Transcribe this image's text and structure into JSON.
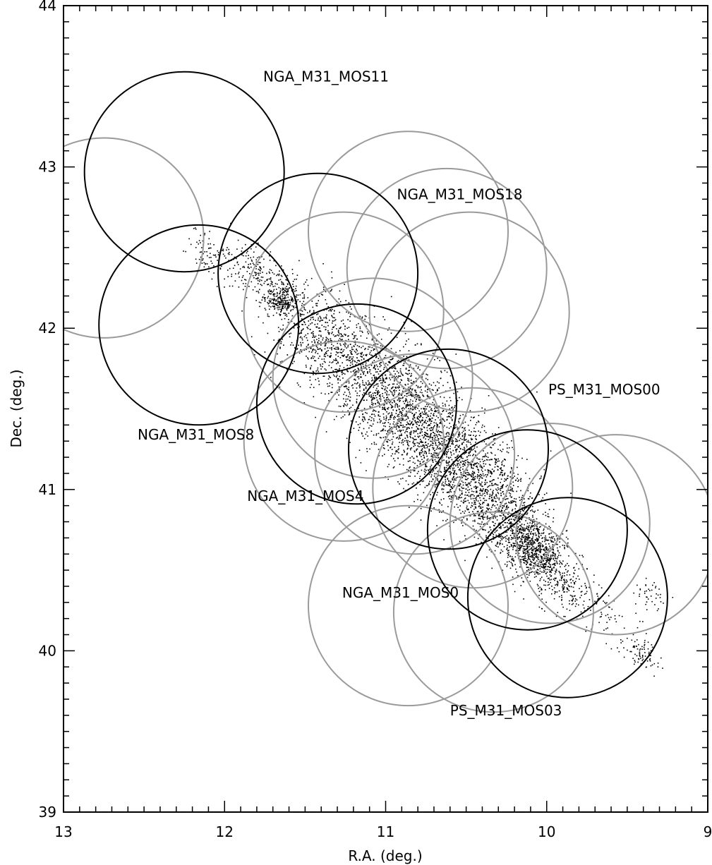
{
  "chart_data": {
    "type": "scatter",
    "title": "",
    "xlabel": "R.A. (deg.)",
    "ylabel": "Dec. (deg.)",
    "xlim": [
      13,
      9
    ],
    "ylim": [
      39,
      44
    ],
    "x_reversed": true,
    "grid": false,
    "x_ticks": [
      "13",
      "12",
      "11",
      "10",
      "9"
    ],
    "y_ticks": [
      "39",
      "40",
      "41",
      "42",
      "43",
      "44"
    ],
    "colors": {
      "gray_field": "#9a9a9a",
      "black_field": "#000000",
      "points": "#000000"
    },
    "fields": [
      {
        "label": "NGA_M31_MOS11",
        "ra": 12.25,
        "dec": 42.97,
        "r": 0.62,
        "color": "black",
        "label_ra": 11.76,
        "label_dec": 43.53
      },
      {
        "label": "NGA_M31_MOS18",
        "ra": 11.42,
        "dec": 42.34,
        "r": 0.62,
        "color": "black",
        "label_ra": 10.93,
        "label_dec": 42.8
      },
      {
        "label": "NGA_M31_MOS8",
        "ra": 12.16,
        "dec": 42.02,
        "r": 0.62,
        "color": "black",
        "label_ra": 12.54,
        "label_dec": 41.31
      },
      {
        "label": "NGA_M31_MOS4",
        "ra": 11.18,
        "dec": 41.53,
        "r": 0.62,
        "color": "black",
        "label_ra": 11.86,
        "label_dec": 40.93
      },
      {
        "label": "PS_M31_MOS00",
        "ra": 10.61,
        "dec": 41.25,
        "r": 0.62,
        "color": "black",
        "label_ra": 9.99,
        "label_dec": 41.59
      },
      {
        "label": "",
        "ra": 10.12,
        "dec": 40.75,
        "r": 0.62,
        "color": "black"
      },
      {
        "label": "PS_M31_MOS03",
        "ra": 9.87,
        "dec": 40.33,
        "r": 0.62,
        "color": "black",
        "label_ra": 10.6,
        "label_dec": 39.6
      },
      {
        "label": "",
        "ra": 12.75,
        "dec": 42.56,
        "r": 0.62,
        "color": "gray"
      },
      {
        "label": "",
        "ra": 10.86,
        "dec": 42.6,
        "r": 0.62,
        "color": "gray"
      },
      {
        "label": "",
        "ra": 10.62,
        "dec": 42.37,
        "r": 0.62,
        "color": "gray"
      },
      {
        "label": "",
        "ra": 11.26,
        "dec": 42.1,
        "r": 0.62,
        "color": "gray"
      },
      {
        "label": "",
        "ra": 10.48,
        "dec": 42.1,
        "r": 0.62,
        "color": "gray"
      },
      {
        "label": "",
        "ra": 11.08,
        "dec": 41.69,
        "r": 0.62,
        "color": "gray"
      },
      {
        "label": "",
        "ra": 11.26,
        "dec": 41.3,
        "r": 0.62,
        "color": "gray"
      },
      {
        "label": "",
        "ra": 10.82,
        "dec": 41.22,
        "r": 0.62,
        "color": "gray"
      },
      {
        "label": "",
        "ra": 10.46,
        "dec": 41.01,
        "r": 0.62,
        "color": "gray"
      },
      {
        "label": "",
        "ra": 9.98,
        "dec": 40.79,
        "r": 0.62,
        "color": "gray"
      },
      {
        "label": "",
        "ra": 9.57,
        "dec": 40.72,
        "r": 0.62,
        "color": "gray"
      },
      {
        "label": "",
        "ra": 10.86,
        "dec": 40.28,
        "r": 0.62,
        "color": "gray"
      },
      {
        "label": "NGA_M31_MOS0",
        "ra": 10.33,
        "dec": 40.24,
        "r": 0.62,
        "color": "gray",
        "label_ra": 11.27,
        "label_dec": 40.33
      }
    ],
    "point_clusters": [
      {
        "ra": 12.1,
        "dec": 42.45,
        "sigma_major": 0.1,
        "sigma_minor": 0.05,
        "count": 80
      },
      {
        "ra": 11.8,
        "dec": 42.35,
        "sigma_major": 0.12,
        "sigma_minor": 0.07,
        "count": 200
      },
      {
        "ra": 11.65,
        "dec": 42.18,
        "sigma_major": 0.06,
        "sigma_minor": 0.05,
        "count": 250
      },
      {
        "ra": 11.4,
        "dec": 41.95,
        "sigma_major": 0.2,
        "sigma_minor": 0.12,
        "count": 500
      },
      {
        "ra": 11.1,
        "dec": 41.7,
        "sigma_major": 0.25,
        "sigma_minor": 0.14,
        "count": 700
      },
      {
        "ra": 10.85,
        "dec": 41.45,
        "sigma_major": 0.25,
        "sigma_minor": 0.15,
        "count": 900
      },
      {
        "ra": 10.6,
        "dec": 41.2,
        "sigma_major": 0.25,
        "sigma_minor": 0.14,
        "count": 900
      },
      {
        "ra": 10.35,
        "dec": 40.95,
        "sigma_major": 0.22,
        "sigma_minor": 0.13,
        "count": 800
      },
      {
        "ra": 10.1,
        "dec": 40.65,
        "sigma_major": 0.12,
        "sigma_minor": 0.08,
        "count": 700
      },
      {
        "ra": 9.95,
        "dec": 40.45,
        "sigma_major": 0.15,
        "sigma_minor": 0.08,
        "count": 300
      },
      {
        "ra": 9.6,
        "dec": 40.2,
        "sigma_major": 0.15,
        "sigma_minor": 0.06,
        "count": 60
      },
      {
        "ra": 9.4,
        "dec": 39.98,
        "sigma_major": 0.06,
        "sigma_minor": 0.04,
        "count": 70
      },
      {
        "ra": 9.35,
        "dec": 40.35,
        "sigma_major": 0.06,
        "sigma_minor": 0.04,
        "count": 40
      }
    ]
  }
}
